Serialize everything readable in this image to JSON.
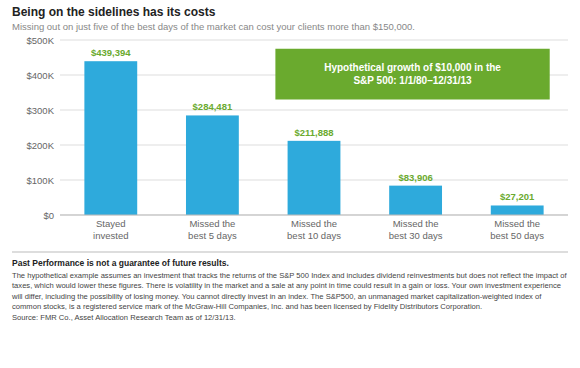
{
  "chart_data": {
    "type": "bar",
    "title": "Being on the sidelines has its costs",
    "subtitle": "Missing out on just five of the best days of the market can cost your clients more than $150,000.",
    "categories": [
      "Stayed\ninvested",
      "Missed the\nbest 5 days",
      "Missed the\nbest 10 days",
      "Missed the\nbest 30 days",
      "Missed the\nbest 50 days"
    ],
    "values": [
      439394,
      284481,
      211888,
      83906,
      27201
    ],
    "value_labels": [
      "$439,394",
      "$284,481",
      "$211,888",
      "$83,906",
      "$27,201"
    ],
    "data_labels": true,
    "color": "#2eaadc",
    "ylim": [
      0,
      500000
    ],
    "yticks": [
      {
        "value": 0,
        "label": "$0"
      },
      {
        "value": 100000,
        "label": "$100K"
      },
      {
        "value": 200000,
        "label": "$200K"
      },
      {
        "value": 300000,
        "label": "$300K"
      },
      {
        "value": 400000,
        "label": "$400K"
      },
      {
        "value": 500000,
        "label": "$500K"
      }
    ],
    "grid": true,
    "annotations": [
      "Hypothetical growth of $10,000 in the",
      "S&P 500: 1/1/80–12/31/13"
    ],
    "footnotes": [
      "Past Performance is not a guarantee of future results.",
      "The hypothetical example assumes an investment that tracks the returns of the S&P 500 Index and includes dividend reinvestments but does not reflect the impact of taxes, which would lower these figures. There is volatility in the market and a sale at any point in time could result in a gain or loss. Your own investment experience will differ, including the possibility of losing money. You cannot directly invest in an index. The S&P500, an unmanaged market capitalization-weighted index of common stocks, is a registered service mark of the McGraw-Hill Companies, Inc. and has been licensed by Fidelity Distributors Corporation.\nSource: FMR Co., Asset Allocation Research Team as of 12/31/13."
    ]
  }
}
